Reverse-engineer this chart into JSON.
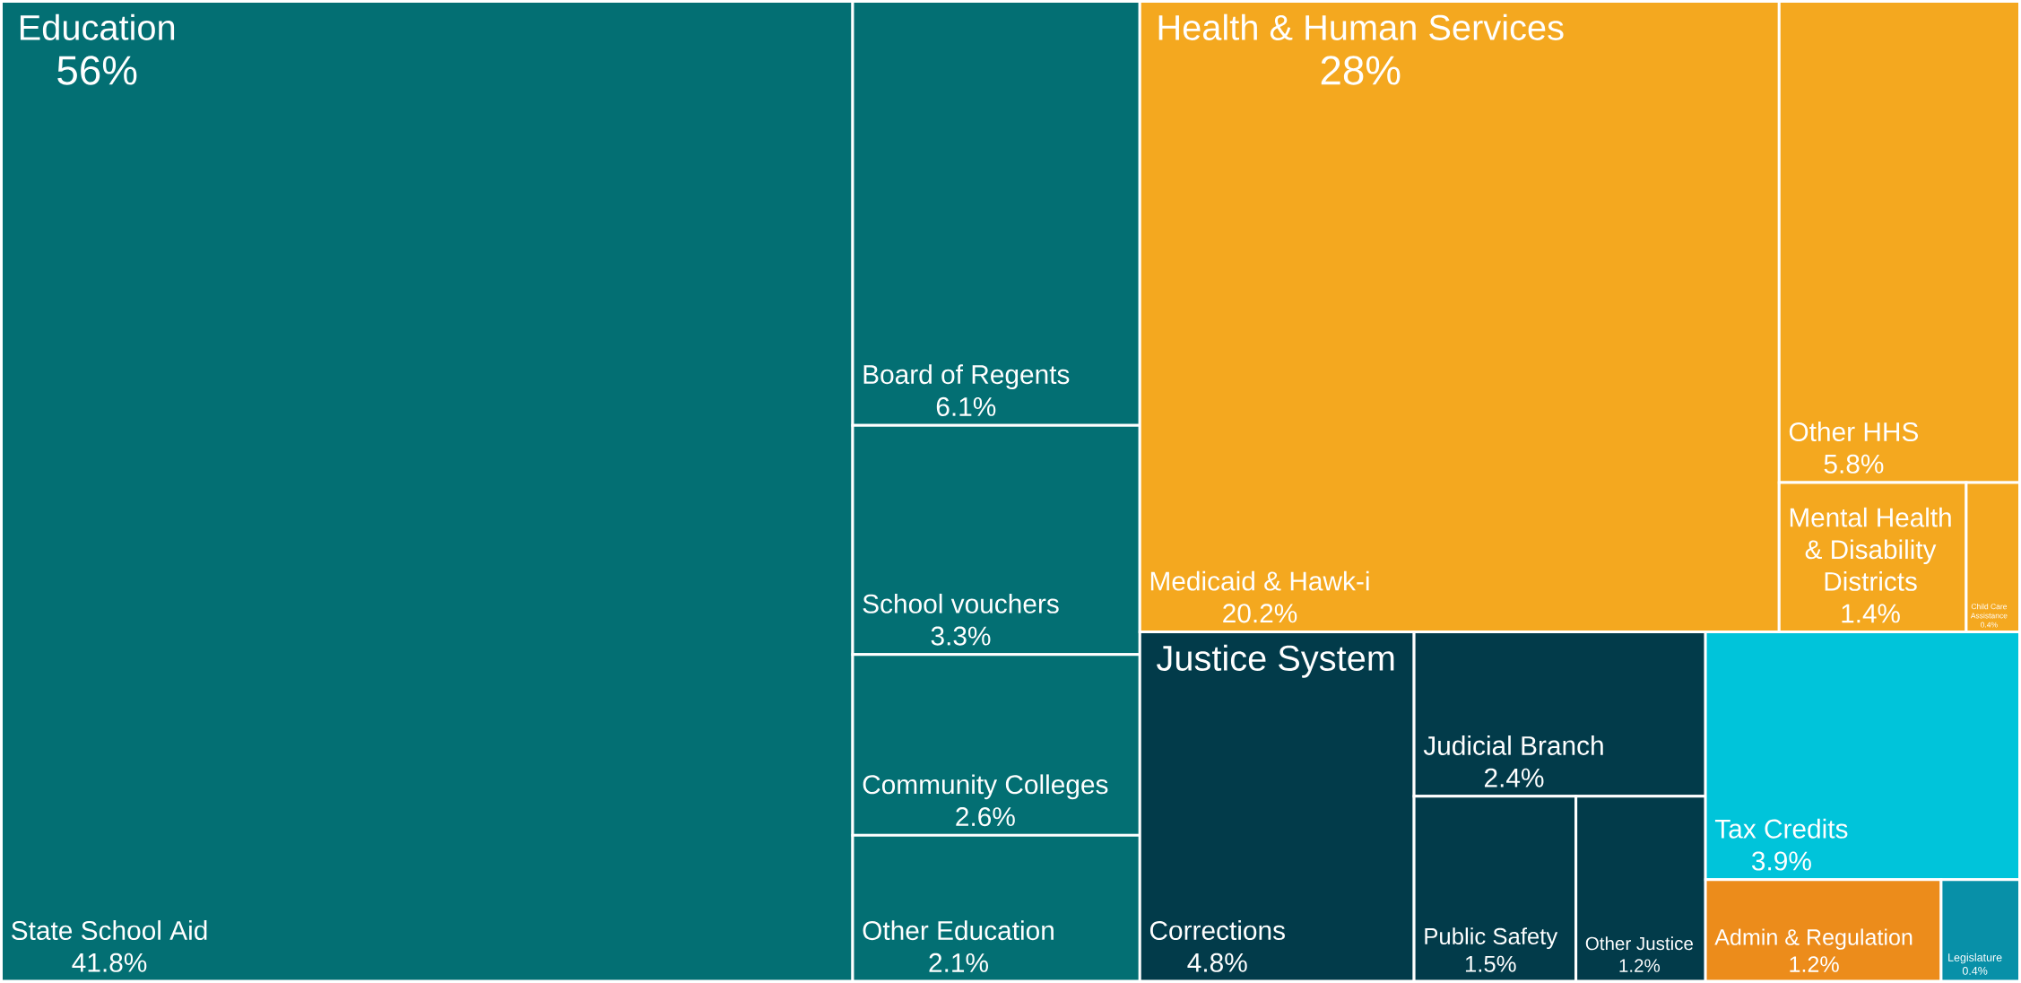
{
  "chart_data": {
    "type": "other",
    "categories": [
      "State School Aid",
      "Board of Regents",
      "School vouchers",
      "Community Colleges",
      "Other Education",
      "Medicaid & Hawk-i",
      "Other HHS",
      "Mental Health & Disability Districts",
      "Child Care Assistance",
      "Corrections",
      "Judicial Branch",
      "Public Safety",
      "Other Justice",
      "Tax Credits",
      "Admin & Regulation",
      "Legislature"
    ],
    "series": [
      {
        "name": "Education",
        "color": "#036f73",
        "values": [
          41.8,
          6.1,
          3.3,
          2.6,
          2.1,
          null,
          null,
          null,
          null,
          null,
          null,
          null,
          null,
          null,
          null,
          null
        ],
        "value_labels": [
          "41.8%",
          "6.1%",
          "3.3%",
          "2.6%",
          "2.1%",
          null,
          null,
          null,
          null,
          null,
          null,
          null,
          null,
          null,
          null,
          null
        ]
      },
      {
        "name": "Health & Human Services",
        "color": "#f4a81f",
        "values": [
          null,
          null,
          null,
          null,
          null,
          20.2,
          5.8,
          1.4,
          0.4,
          null,
          null,
          null,
          null,
          null,
          null,
          null
        ],
        "value_labels": [
          null,
          null,
          null,
          null,
          null,
          "20.2%",
          "5.8%",
          "1.4%",
          "0.4%",
          null,
          null,
          null,
          null,
          null,
          null,
          null
        ]
      },
      {
        "name": "Justice System",
        "color": "#023b4a",
        "values": [
          null,
          null,
          null,
          null,
          null,
          null,
          null,
          null,
          null,
          4.8,
          2.4,
          1.5,
          1.2,
          null,
          null,
          null
        ],
        "value_labels": [
          null,
          null,
          null,
          null,
          null,
          null,
          null,
          null,
          null,
          "4.8%",
          "2.4%",
          "1.5%",
          "1.2%",
          null,
          null,
          null
        ]
      },
      {
        "color": "#00c4da",
        "values": [
          null,
          null,
          null,
          null,
          null,
          null,
          null,
          null,
          null,
          null,
          null,
          null,
          null,
          3.9,
          null,
          null
        ],
        "value_labels": [
          null,
          null,
          null,
          null,
          null,
          null,
          null,
          null,
          null,
          null,
          null,
          null,
          null,
          "3.9%",
          null,
          null
        ]
      },
      {
        "color": "#ec8c1b",
        "values": [
          null,
          null,
          null,
          null,
          null,
          null,
          null,
          null,
          null,
          null,
          null,
          null,
          null,
          null,
          1.2,
          null
        ],
        "value_labels": [
          null,
          null,
          null,
          null,
          null,
          null,
          null,
          null,
          null,
          null,
          null,
          null,
          null,
          null,
          "1.2%",
          null
        ]
      },
      {
        "color": "#0890a8",
        "values": [
          null,
          null,
          null,
          null,
          null,
          null,
          null,
          null,
          null,
          null,
          null,
          null,
          null,
          null,
          null,
          0.4
        ],
        "value_labels": [
          null,
          null,
          null,
          null,
          null,
          null,
          null,
          null,
          null,
          null,
          null,
          null,
          null,
          null,
          null,
          "0.4%"
        ]
      }
    ],
    "totals": [
      "56%",
      "28%",
      null,
      null,
      null,
      null
    ]
  }
}
